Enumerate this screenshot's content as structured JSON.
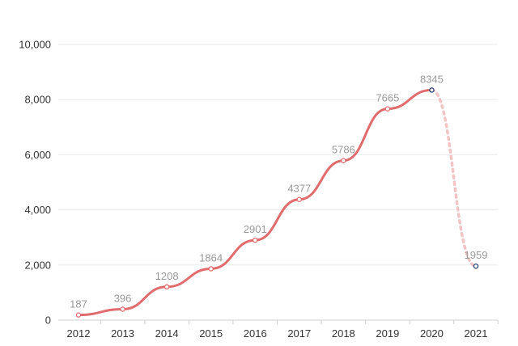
{
  "chart_data": {
    "type": "line",
    "title": "",
    "xlabel": "",
    "ylabel": "",
    "x": [
      "2012",
      "2013",
      "2014",
      "2015",
      "2016",
      "2017",
      "2018",
      "2019",
      "2020",
      "2021"
    ],
    "series": [
      {
        "values": [
          187,
          396,
          1208,
          1864,
          2901,
          4377,
          5786,
          7665,
          8345,
          1959
        ],
        "data_labels": [
          "187",
          "396",
          "1208",
          "1864",
          "2901",
          "4377",
          "5786",
          "7665",
          "8345",
          "1959"
        ],
        "line_style": "smooth",
        "last_segment_style": "dotted",
        "highlighted_points": [
          "2020",
          "2021"
        ]
      }
    ],
    "ylim": [
      0,
      10000
    ],
    "yticks": [
      0,
      2000,
      4000,
      6000,
      8000,
      10000
    ],
    "ytick_labels": [
      "0",
      "2,000",
      "4,000",
      "6,000",
      "8,000",
      "10,000"
    ],
    "grid": "horizontal",
    "legend": "none",
    "colors": {
      "line": "#e06c6e",
      "line_dotted": "#f2c4c5",
      "marker_fill": "#ffffff",
      "marker_stroke": "#e06c6e",
      "highlight_marker_stroke": "#2c3e73",
      "data_label": "#999999",
      "tick_label": "#333333",
      "grid": "#ebebeb"
    }
  }
}
